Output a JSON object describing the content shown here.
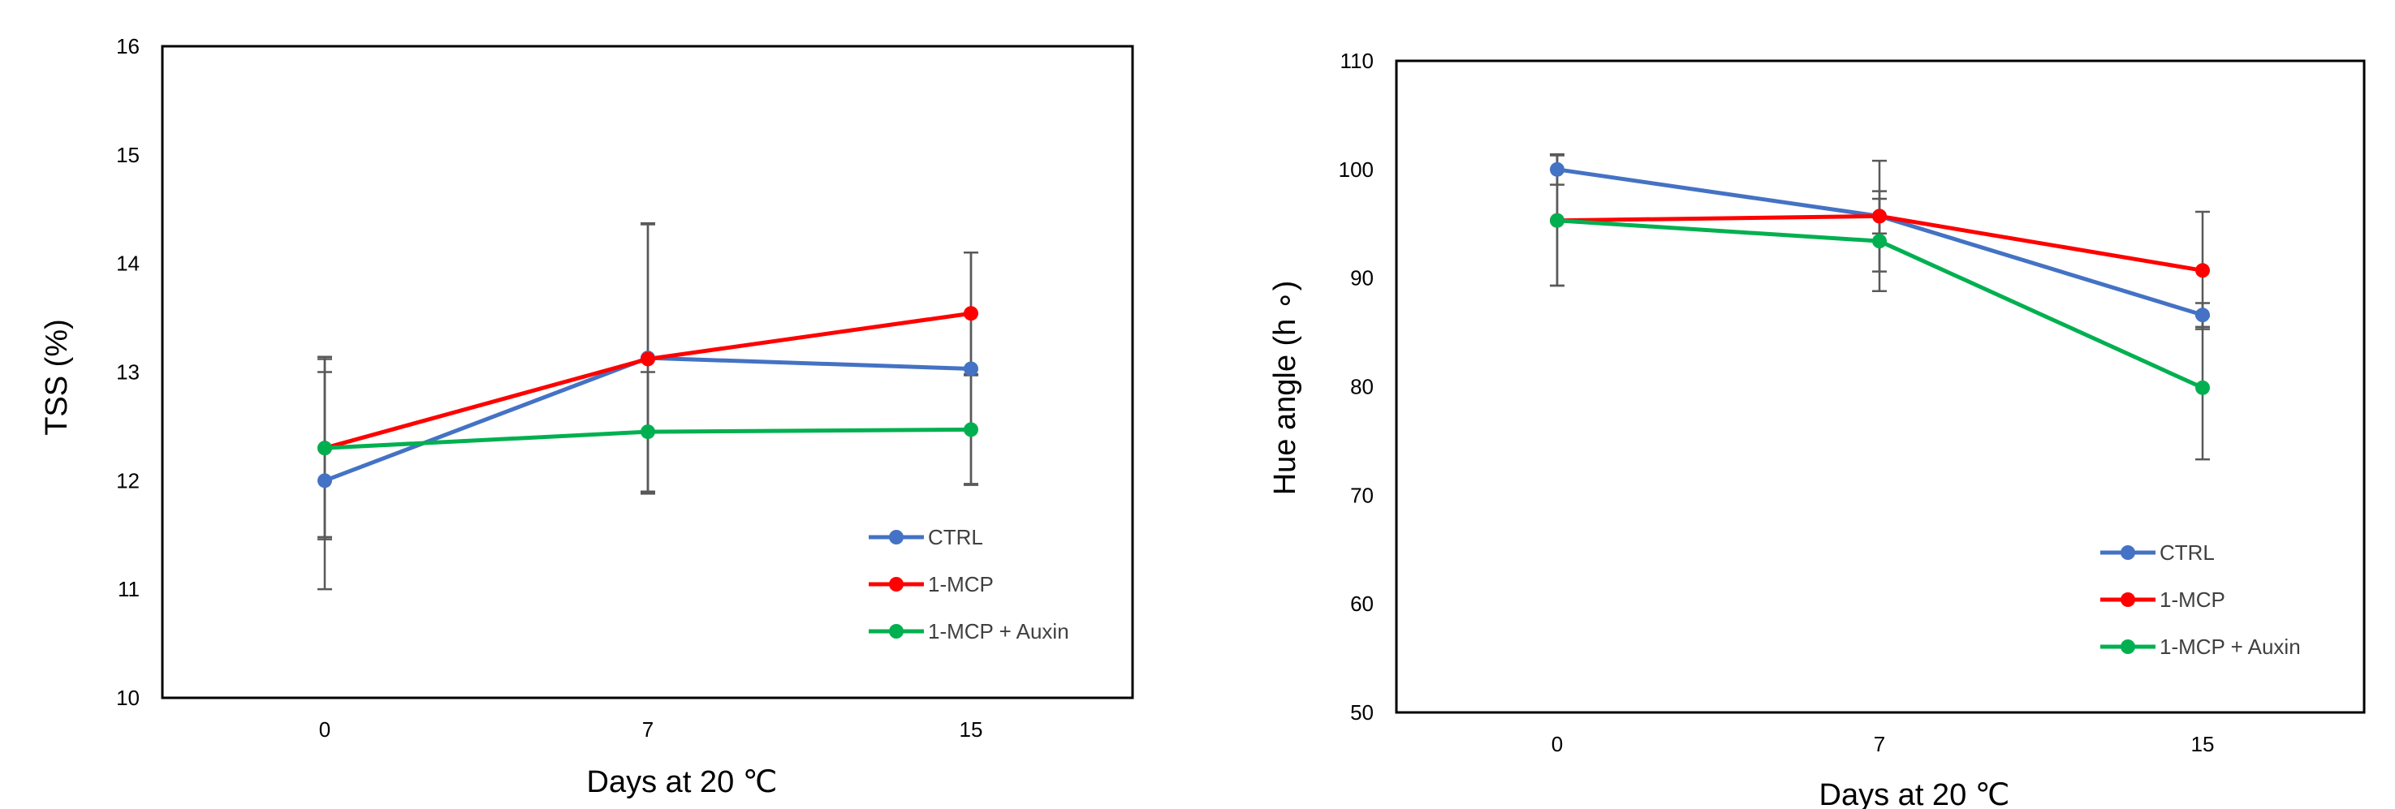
{
  "chart_data": [
    {
      "type": "line",
      "ylabel": "TSS (%)",
      "xlabel": "Days at 20 ℃",
      "categories": [
        "0",
        "7",
        "15"
      ],
      "ylim": [
        10,
        16
      ],
      "yticks": [
        "10",
        "11",
        "12",
        "13",
        "14",
        "15",
        "16"
      ],
      "legend_position": "bottom-right",
      "series": [
        {
          "name": "CTRL",
          "color": "#4472C4",
          "values": [
            12.0,
            13.13,
            13.03
          ],
          "error": [
            1.0,
            1.24,
            1.07
          ]
        },
        {
          "name": "1-MCP",
          "color": "#FF0000",
          "values": [
            12.3,
            13.12,
            13.54
          ],
          "error": [
            0.84,
            1.24,
            0.56
          ]
        },
        {
          "name": "1-MCP + Auxin",
          "color": "#00B050",
          "values": [
            12.3,
            12.45,
            12.47
          ],
          "error": [
            0.82,
            0.55,
            0.5
          ]
        }
      ]
    },
    {
      "type": "line",
      "ylabel": "Hue angle (h ∘)",
      "xlabel": "Days at 20 ℃",
      "categories": [
        "0",
        "7",
        "15"
      ],
      "ylim": [
        50,
        110
      ],
      "yticks": [
        "50",
        "60",
        "70",
        "80",
        "90",
        "100",
        "110"
      ],
      "legend_position": "bottom-right",
      "series": [
        {
          "name": "CTRL",
          "color": "#4472C4",
          "values": [
            100.0,
            95.7,
            86.6
          ],
          "error": [
            1.4,
            1.6,
            1.1
          ]
        },
        {
          "name": "1-MCP",
          "color": "#FF0000",
          "values": [
            95.3,
            95.7,
            90.7
          ],
          "error": [
            6.0,
            5.1,
            5.4
          ]
        },
        {
          "name": "1-MCP + Auxin",
          "color": "#00B050",
          "values": [
            95.3,
            93.4,
            79.9
          ],
          "error": [
            6.0,
            4.6,
            6.6
          ]
        }
      ]
    }
  ]
}
